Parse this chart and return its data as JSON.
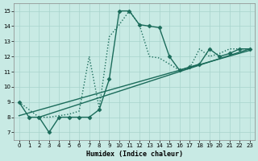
{
  "xlabel": "Humidex (Indice chaleur)",
  "xlim": [
    -0.5,
    23.5
  ],
  "ylim": [
    6.5,
    15.5
  ],
  "xticks": [
    0,
    1,
    2,
    3,
    4,
    5,
    6,
    7,
    8,
    9,
    10,
    11,
    12,
    13,
    14,
    15,
    16,
    17,
    18,
    19,
    20,
    21,
    22,
    23
  ],
  "yticks": [
    7,
    8,
    9,
    10,
    11,
    12,
    13,
    14,
    15
  ],
  "bg_color": "#c8eae4",
  "grid_color": "#a8d4cc",
  "line_color": "#1a6b5a",
  "line_width": 1.0,
  "marker_size": 2.5,
  "s0x": [
    0,
    1,
    2,
    3,
    4,
    5,
    6,
    7,
    8,
    9,
    10,
    11,
    12,
    13,
    14,
    15,
    16,
    17,
    18,
    19,
    20,
    21,
    22,
    23
  ],
  "s0y": [
    9,
    8,
    8,
    7,
    8,
    8,
    8,
    8,
    8.5,
    10.5,
    15,
    15,
    14.1,
    14,
    13.9,
    12,
    11.1,
    11.3,
    11.5,
    12.5,
    12,
    12.2,
    12.5,
    12.5
  ],
  "s1x": [
    0,
    2,
    3,
    4,
    5,
    6,
    7,
    8,
    9,
    10,
    11,
    12,
    13,
    14,
    16,
    17,
    18,
    19,
    20,
    21,
    22,
    23
  ],
  "s1y": [
    9,
    8,
    8,
    8.1,
    8.2,
    8.4,
    12,
    8.6,
    13.3,
    14.1,
    15,
    14.1,
    12,
    11.9,
    11.1,
    11.2,
    12.5,
    12,
    12.2,
    12.5,
    12.5,
    12.5
  ],
  "s2x": [
    2,
    23
  ],
  "s2y": [
    8,
    12.5
  ],
  "s3x": [
    0,
    23
  ],
  "s3y": [
    8.1,
    12.4
  ]
}
